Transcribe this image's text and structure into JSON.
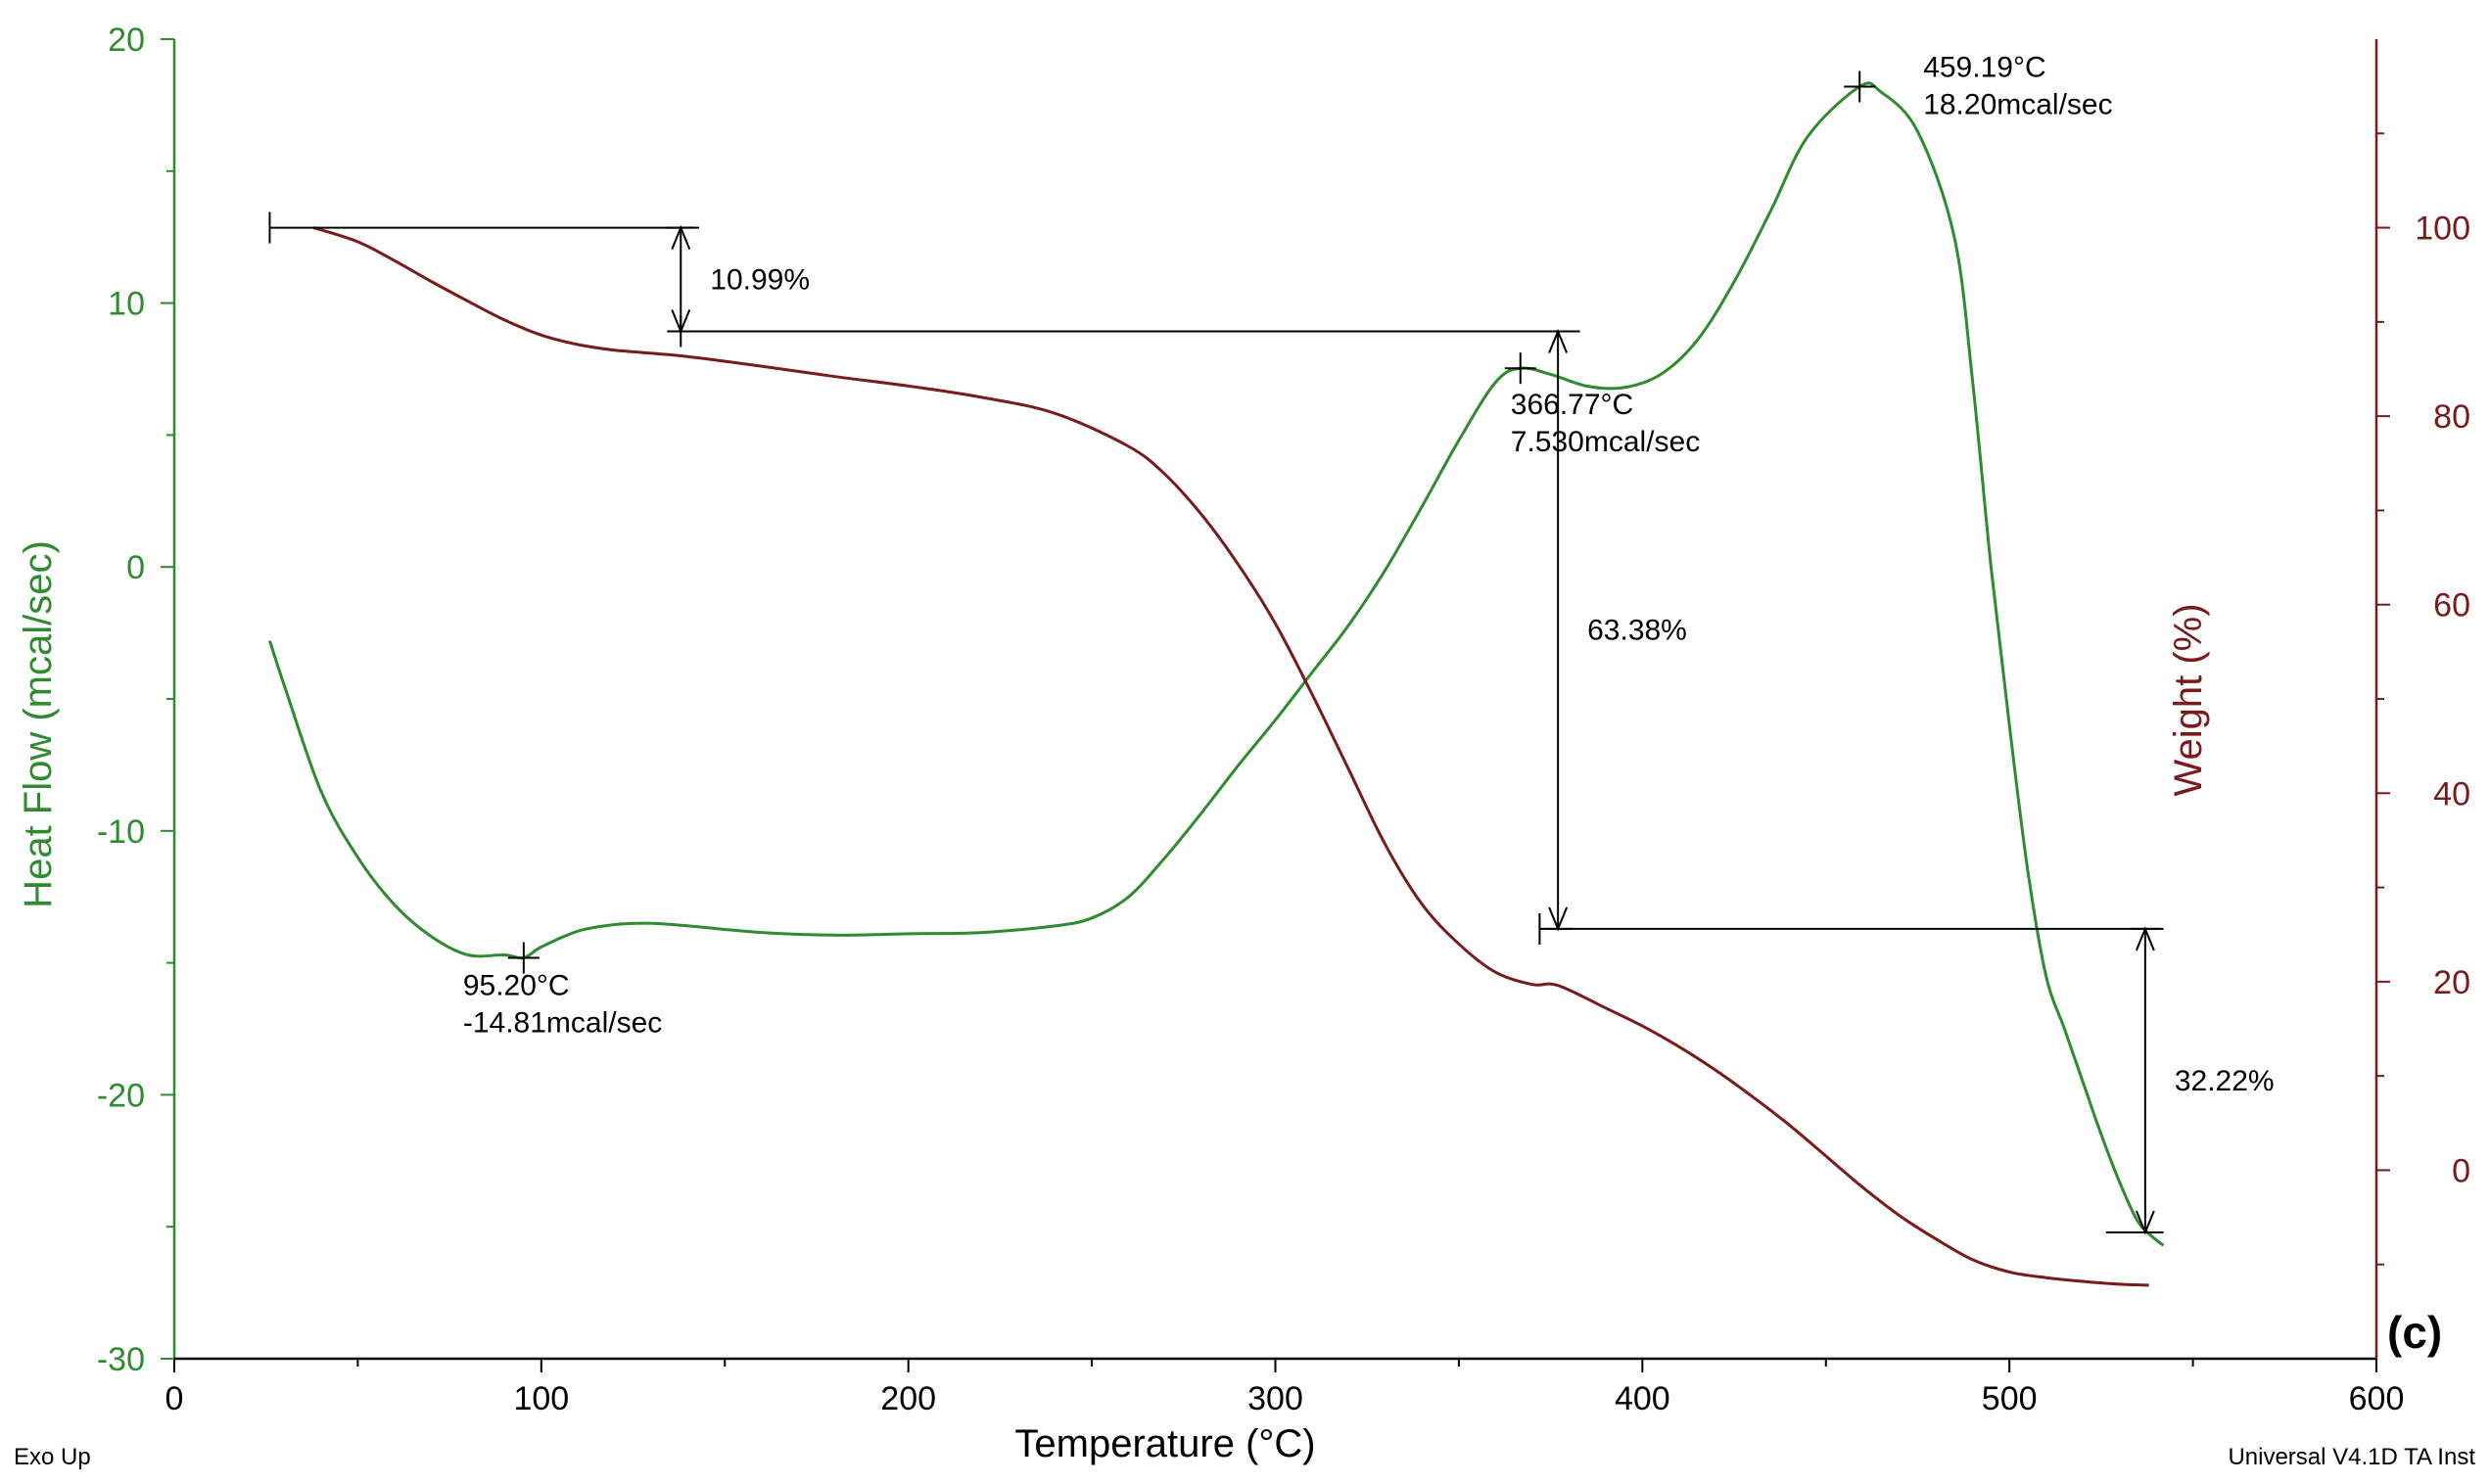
{
  "chart_data": {
    "type": "line",
    "title": "",
    "panel_label": "(c)",
    "xlabel": "Temperature (°C)",
    "ylabel_left": "Heat Flow (mcal/sec)",
    "ylabel_right": "Weight (%)",
    "xlim": [
      0,
      600
    ],
    "ylim_left": [
      -30,
      20
    ],
    "ylim_right": [
      -20,
      120
    ],
    "x_ticks": [
      0,
      100,
      200,
      300,
      400,
      500,
      600
    ],
    "left_ticks": [
      -30,
      -20,
      -10,
      0,
      10,
      20
    ],
    "right_ticks": [
      0,
      20,
      40,
      60,
      80,
      100
    ],
    "grid": false,
    "colors": {
      "heat_flow": "#2e8b2e",
      "weight": "#7a1a1a",
      "left_axis": "#2e8b2e",
      "right_axis": "#7a1a1a",
      "annotation": "#000000"
    },
    "series": [
      {
        "name": "Heat Flow",
        "axis": "left",
        "x": [
          26,
          30,
          40,
          50,
          60,
          70,
          80,
          90,
          95.2,
          100,
          110,
          120,
          130,
          140,
          160,
          180,
          200,
          220,
          240,
          250,
          260,
          270,
          280,
          290,
          300,
          310,
          320,
          330,
          340,
          350,
          360,
          366.77,
          375,
          385,
          395,
          405,
          415,
          425,
          435,
          445,
          459.19,
          465,
          475,
          485,
          490,
          495,
          500,
          505,
          510,
          515,
          520,
          525,
          530,
          535,
          540,
          542
        ],
        "values": [
          -2.8,
          -4.5,
          -8.5,
          -11,
          -12.8,
          -14,
          -14.7,
          -14.7,
          -14.81,
          -14.4,
          -13.8,
          -13.55,
          -13.5,
          -13.6,
          -13.85,
          -13.95,
          -13.9,
          -13.85,
          -13.6,
          -13.3,
          -12.5,
          -11,
          -9.3,
          -7.5,
          -5.8,
          -4,
          -2.2,
          -0.1,
          2.3,
          4.8,
          7,
          7.53,
          7.3,
          6.85,
          6.8,
          7.3,
          8.6,
          10.8,
          13.5,
          16.3,
          18.2,
          18,
          16.5,
          12.5,
          7,
          0,
          -6,
          -11.5,
          -15.5,
          -17.5,
          -19.5,
          -21.5,
          -23.3,
          -24.8,
          -25.5,
          -25.7
        ]
      },
      {
        "name": "Weight",
        "axis": "right",
        "x": [
          38,
          50,
          60,
          70,
          80,
          90,
          100,
          110,
          120,
          138,
          160,
          180,
          200,
          220,
          240,
          260,
          270,
          280,
          290,
          300,
          310,
          320,
          330,
          340,
          350,
          360,
          370,
          377,
          390,
          400,
          410,
          420,
          430,
          440,
          450,
          460,
          470,
          480,
          490,
          500,
          510,
          520,
          530,
          538
        ],
        "values": [
          100,
          98.5,
          96.5,
          94.3,
          92.2,
          90.2,
          88.6,
          87.6,
          87,
          86.4,
          85.3,
          84.2,
          83.2,
          82,
          80.3,
          76.8,
          73.8,
          69.5,
          64.2,
          58,
          50.5,
          42.5,
          34.5,
          28.2,
          24,
          21,
          19.7,
          19.6,
          17.2,
          15.3,
          13.1,
          10.6,
          7.8,
          4.8,
          1.5,
          -1.8,
          -4.8,
          -7.3,
          -9.5,
          -10.8,
          -11.4,
          -11.8,
          -12.1,
          -12.2
        ]
      }
    ],
    "peak_labels": [
      {
        "text": "95.20°C",
        "text2": "-14.81mcal/sec",
        "x": 95.2,
        "y": -14.81
      },
      {
        "text": "366.77°C",
        "text2": "7.530mcal/sec",
        "x": 366.77,
        "y": 7.53
      },
      {
        "text": "459.19°C",
        "text2": "18.20mcal/sec",
        "x": 459.19,
        "y": 18.2
      }
    ],
    "weight_steps": [
      {
        "label": "10.99%",
        "x_start": 26,
        "x_arrow": 138,
        "x_end": 143,
        "from": 100,
        "to": 89
      },
      {
        "label": "63.38%",
        "x_start": 138,
        "x_arrow": 377,
        "x_end": 383,
        "from": 89,
        "to": 25.6
      },
      {
        "label": "32.22%",
        "x_start": 372,
        "x_arrow": 537,
        "x_end": 542,
        "from": 25.6,
        "to": -6.6
      }
    ],
    "footer_left": "Exo Up",
    "footer_right": "Universal V4.1D TA Inst"
  }
}
